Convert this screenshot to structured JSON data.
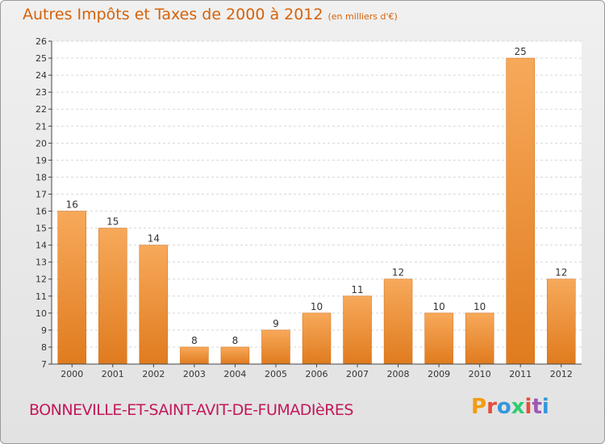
{
  "header": {
    "title": "Autres Impôts et Taxes de 2000 à 2012",
    "unit": "(en milliers d'€)"
  },
  "footer": {
    "commune": "BONNEVILLE-ET-SAINT-AVIT-DE-FUMADIèRES",
    "logo": [
      "P",
      "r",
      "o",
      "x",
      "i",
      "t",
      "i"
    ]
  },
  "colors": {
    "title": "#d4620a",
    "commune": "#c2185b",
    "bar_top": "#f7a95a",
    "bar_bottom": "#e07b1f",
    "logo": [
      "#f39c12",
      "#e74c3c",
      "#3498db",
      "#2ecc71",
      "#e74c3c",
      "#9b59b6",
      "#3498db"
    ]
  },
  "chart_data": {
    "type": "bar",
    "title": "Autres Impôts et Taxes de 2000 à 2012",
    "subtitle": "(en milliers d'€)",
    "categories": [
      "2000",
      "2001",
      "2002",
      "2003",
      "2004",
      "2005",
      "2006",
      "2007",
      "2008",
      "2009",
      "2010",
      "2011",
      "2012"
    ],
    "values": [
      16,
      15,
      14,
      8,
      8,
      9,
      10,
      11,
      12,
      10,
      10,
      25,
      12
    ],
    "ylim": [
      7,
      26
    ],
    "yticks": [
      7,
      8,
      9,
      10,
      11,
      12,
      13,
      14,
      15,
      16,
      17,
      18,
      19,
      20,
      21,
      22,
      23,
      24,
      25,
      26
    ],
    "grid": "horizontal dashed",
    "legend": "none"
  }
}
